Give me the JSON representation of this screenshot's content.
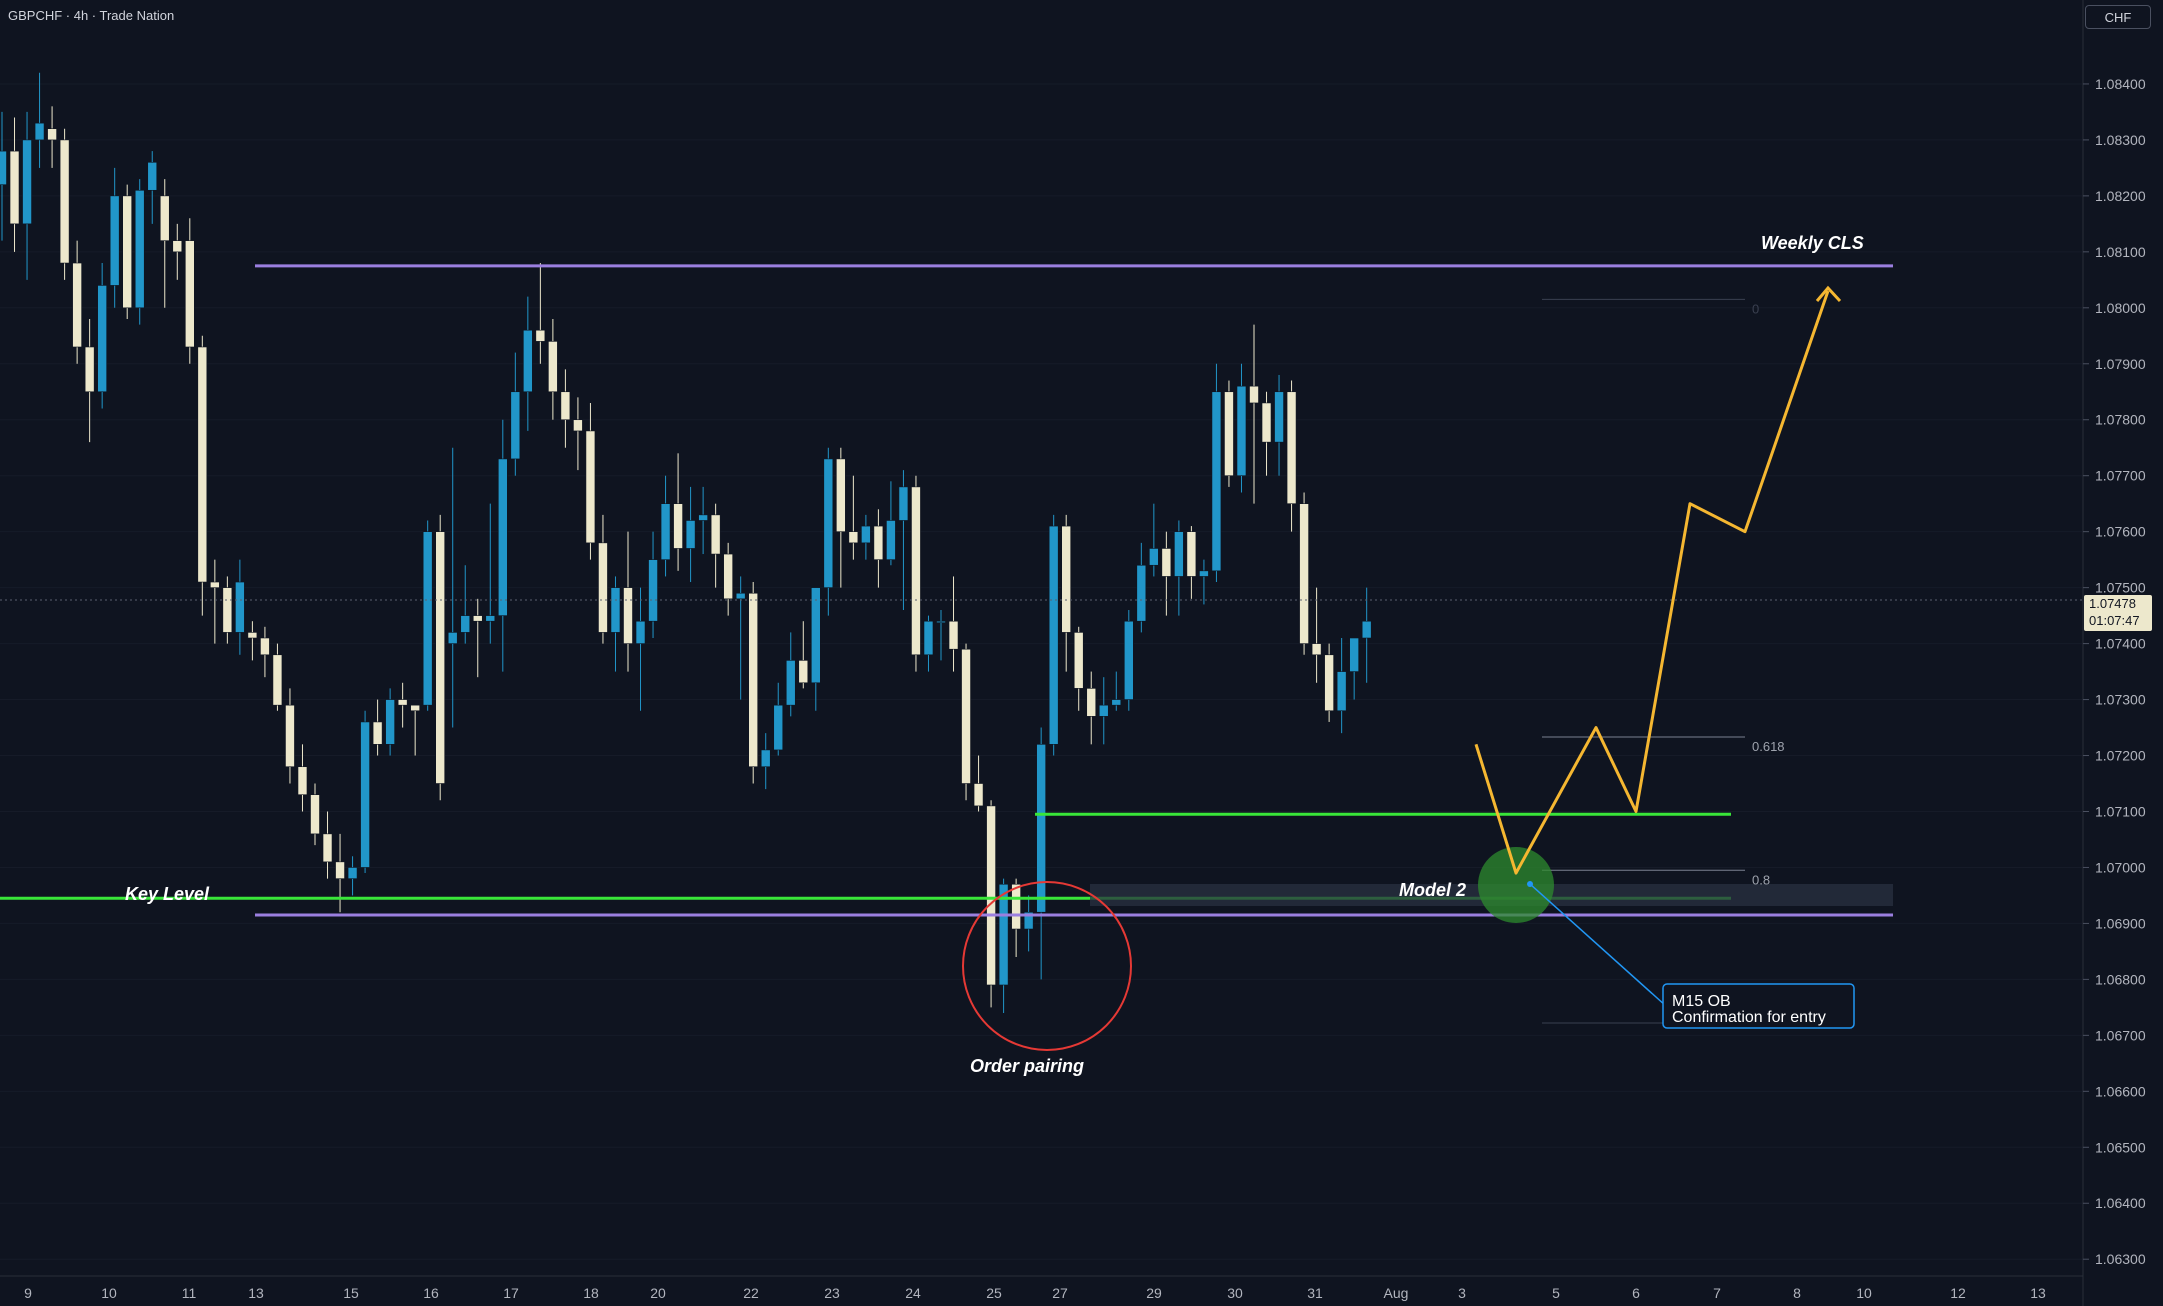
{
  "header": {
    "symbol_info": "GBPCHF · 4h · Trade Nation",
    "currency": "CHF"
  },
  "price_scale": {
    "ticks": [
      "1.08400",
      "1.08300",
      "1.08200",
      "1.08100",
      "1.08000",
      "1.07900",
      "1.07800",
      "1.07700",
      "1.07600",
      "1.07500",
      "1.07400",
      "1.07300",
      "1.07200",
      "1.07100",
      "1.07000",
      "1.06900",
      "1.06800",
      "1.06700",
      "1.06600",
      "1.06500",
      "1.06400",
      "1.06300"
    ],
    "ymin": 1.0627,
    "ymax": 1.0855,
    "current_price": "1.07478",
    "countdown": "01:07:47",
    "current_value": 1.07478
  },
  "time_scale": {
    "labels": [
      "9",
      "10",
      "11",
      "13",
      "15",
      "16",
      "17",
      "18",
      "20",
      "22",
      "23",
      "24",
      "25",
      "27",
      "29",
      "30",
      "31",
      "Aug",
      "3",
      "5",
      "6",
      "7",
      "8",
      "10",
      "12",
      "13"
    ]
  },
  "annotations": {
    "weekly_cls": "Weekly CLS",
    "key_level": "Key Level",
    "model_2": "Model 2",
    "order_pairing": "Order pairing",
    "fib_0": "0",
    "fib_618": "0.618",
    "fib_08": "0.8",
    "callout_line1": "M15 OB",
    "callout_line2": "Confirmation for entry"
  },
  "levels": {
    "weekly_cls_price": 1.08075,
    "lower_range_price": 1.06915,
    "key_level_price": 1.06945,
    "entry_level_price": 1.07095
  },
  "colors": {
    "background": "#0f1420",
    "bull_candle": "#2196c9",
    "bear_candle": "#ede8cc",
    "range_line": "#9b7fe0",
    "key_level": "#39e639",
    "projection": "#f5b731",
    "circle": "#e53935",
    "callout_border": "#2196f3"
  },
  "chart_data": {
    "type": "candlestick",
    "ohlc": [
      [
        1.0822,
        1.0835,
        1.0812,
        1.0828
      ],
      [
        1.0828,
        1.0834,
        1.081,
        1.0815
      ],
      [
        1.0815,
        1.0835,
        1.0805,
        1.083
      ],
      [
        1.083,
        1.0842,
        1.0825,
        1.0833
      ],
      [
        1.0832,
        1.0836,
        1.0825,
        1.083
      ],
      [
        1.083,
        1.0832,
        1.0805,
        1.0808
      ],
      [
        1.0808,
        1.0812,
        1.079,
        1.0793
      ],
      [
        1.0793,
        1.0798,
        1.0776,
        1.0785
      ],
      [
        1.0785,
        1.0808,
        1.0782,
        1.0804
      ],
      [
        1.0804,
        1.0825,
        1.08,
        1.082
      ],
      [
        1.082,
        1.0822,
        1.0798,
        1.08
      ],
      [
        1.08,
        1.0823,
        1.0797,
        1.0821
      ],
      [
        1.0821,
        1.0828,
        1.0815,
        1.0826
      ],
      [
        1.082,
        1.0823,
        1.08,
        1.0812
      ],
      [
        1.0812,
        1.0815,
        1.0805,
        1.081
      ],
      [
        1.0812,
        1.0816,
        1.079,
        1.0793
      ],
      [
        1.0793,
        1.0795,
        1.0745,
        1.0751
      ],
      [
        1.0751,
        1.0755,
        1.074,
        1.075
      ],
      [
        1.075,
        1.0752,
        1.074,
        1.0742
      ],
      [
        1.0742,
        1.0755,
        1.0738,
        1.0751
      ],
      [
        1.0742,
        1.0744,
        1.0737,
        1.0741
      ],
      [
        1.0741,
        1.0743,
        1.0734,
        1.0738
      ],
      [
        1.0738,
        1.074,
        1.0728,
        1.0729
      ],
      [
        1.0729,
        1.0732,
        1.0715,
        1.0718
      ],
      [
        1.0718,
        1.0722,
        1.071,
        1.0713
      ],
      [
        1.0713,
        1.0715,
        1.0704,
        1.0706
      ],
      [
        1.0706,
        1.071,
        1.0698,
        1.0701
      ],
      [
        1.0701,
        1.0706,
        1.0692,
        1.0698
      ],
      [
        1.0698,
        1.0702,
        1.0695,
        1.07
      ],
      [
        1.07,
        1.0728,
        1.0699,
        1.0726
      ],
      [
        1.0726,
        1.073,
        1.072,
        1.0722
      ],
      [
        1.0722,
        1.0732,
        1.072,
        1.073
      ],
      [
        1.073,
        1.0733,
        1.0725,
        1.0729
      ],
      [
        1.0729,
        1.0728,
        1.072,
        1.0728
      ],
      [
        1.0729,
        1.0762,
        1.0728,
        1.076
      ],
      [
        1.076,
        1.0763,
        1.0712,
        1.0715
      ],
      [
        1.074,
        1.0775,
        1.0725,
        1.0742
      ],
      [
        1.0742,
        1.0754,
        1.074,
        1.0745
      ],
      [
        1.0745,
        1.0748,
        1.0734,
        1.0744
      ],
      [
        1.0744,
        1.0765,
        1.074,
        1.0745
      ],
      [
        1.0745,
        1.078,
        1.0735,
        1.0773
      ],
      [
        1.0773,
        1.0792,
        1.077,
        1.0785
      ],
      [
        1.0785,
        1.0802,
        1.0778,
        1.0796
      ],
      [
        1.0796,
        1.0808,
        1.079,
        1.0794
      ],
      [
        1.0794,
        1.0798,
        1.078,
        1.0785
      ],
      [
        1.0785,
        1.0789,
        1.0775,
        1.078
      ],
      [
        1.078,
        1.0784,
        1.0771,
        1.0778
      ],
      [
        1.0778,
        1.0783,
        1.0755,
        1.0758
      ],
      [
        1.0758,
        1.0763,
        1.074,
        1.0742
      ],
      [
        1.0742,
        1.0752,
        1.0735,
        1.075
      ],
      [
        1.075,
        1.076,
        1.0735,
        1.074
      ],
      [
        1.074,
        1.075,
        1.0728,
        1.0744
      ],
      [
        1.0744,
        1.076,
        1.0741,
        1.0755
      ],
      [
        1.0755,
        1.077,
        1.0752,
        1.0765
      ],
      [
        1.0765,
        1.0774,
        1.0753,
        1.0757
      ],
      [
        1.0757,
        1.0768,
        1.0751,
        1.0762
      ],
      [
        1.0762,
        1.0768,
        1.0756,
        1.0763
      ],
      [
        1.0763,
        1.0765,
        1.075,
        1.0756
      ],
      [
        1.0756,
        1.0758,
        1.0745,
        1.0748
      ],
      [
        1.0748,
        1.0752,
        1.073,
        1.0749
      ],
      [
        1.0749,
        1.0751,
        1.0715,
        1.0718
      ],
      [
        1.0718,
        1.0724,
        1.0714,
        1.0721
      ],
      [
        1.0721,
        1.0733,
        1.072,
        1.0729
      ],
      [
        1.0729,
        1.0742,
        1.0727,
        1.0737
      ],
      [
        1.0737,
        1.0744,
        1.0732,
        1.0733
      ],
      [
        1.0733,
        1.075,
        1.0728,
        1.075
      ],
      [
        1.075,
        1.0775,
        1.0745,
        1.0773
      ],
      [
        1.0773,
        1.0775,
        1.075,
        1.076
      ],
      [
        1.076,
        1.077,
        1.0755,
        1.0758
      ],
      [
        1.0758,
        1.0763,
        1.0755,
        1.0761
      ],
      [
        1.0761,
        1.0764,
        1.075,
        1.0755
      ],
      [
        1.0755,
        1.0769,
        1.0754,
        1.0762
      ],
      [
        1.0762,
        1.0771,
        1.0746,
        1.0768
      ],
      [
        1.0768,
        1.077,
        1.0735,
        1.0738
      ],
      [
        1.0738,
        1.0745,
        1.0735,
        1.0744
      ],
      [
        1.0744,
        1.0746,
        1.0737,
        1.0744
      ],
      [
        1.0744,
        1.0752,
        1.0735,
        1.0739
      ],
      [
        1.0739,
        1.074,
        1.0712,
        1.0715
      ],
      [
        1.0715,
        1.072,
        1.071,
        1.0711
      ],
      [
        1.0711,
        1.0712,
        1.0675,
        1.0679
      ],
      [
        1.0679,
        1.0698,
        1.0674,
        1.0697
      ],
      [
        1.0697,
        1.0698,
        1.0684,
        1.0689
      ],
      [
        1.0689,
        1.0695,
        1.0685,
        1.0692
      ],
      [
        1.0692,
        1.0725,
        1.068,
        1.0722
      ],
      [
        1.0722,
        1.0763,
        1.072,
        1.0761
      ],
      [
        1.0761,
        1.0763,
        1.0735,
        1.0742
      ],
      [
        1.0742,
        1.0743,
        1.0728,
        1.0732
      ],
      [
        1.0732,
        1.0735,
        1.0722,
        1.0727
      ],
      [
        1.0727,
        1.0734,
        1.0722,
        1.0729
      ],
      [
        1.0729,
        1.0735,
        1.0728,
        1.073
      ],
      [
        1.073,
        1.0746,
        1.0728,
        1.0744
      ],
      [
        1.0744,
        1.0758,
        1.0742,
        1.0754
      ],
      [
        1.0754,
        1.0765,
        1.0752,
        1.0757
      ],
      [
        1.0757,
        1.076,
        1.0745,
        1.0752
      ],
      [
        1.0752,
        1.0762,
        1.0745,
        1.076
      ],
      [
        1.076,
        1.0761,
        1.0748,
        1.0752
      ],
      [
        1.0752,
        1.0755,
        1.0747,
        1.0753
      ],
      [
        1.0753,
        1.079,
        1.0751,
        1.0785
      ],
      [
        1.0785,
        1.0787,
        1.0768,
        1.077
      ],
      [
        1.077,
        1.079,
        1.0767,
        1.0786
      ],
      [
        1.0786,
        1.0797,
        1.0765,
        1.0783
      ],
      [
        1.0783,
        1.0785,
        1.077,
        1.0776
      ],
      [
        1.0776,
        1.0788,
        1.077,
        1.0785
      ],
      [
        1.0785,
        1.0787,
        1.076,
        1.0765
      ],
      [
        1.0765,
        1.0767,
        1.0738,
        1.074
      ],
      [
        1.074,
        1.075,
        1.0733,
        1.0738
      ],
      [
        1.0738,
        1.074,
        1.0726,
        1.0728
      ],
      [
        1.0728,
        1.0741,
        1.0724,
        1.0735
      ],
      [
        1.0735,
        1.0741,
        1.073,
        1.0741
      ],
      [
        1.0741,
        1.075,
        1.0733,
        1.0744
      ]
    ],
    "projection_path": [
      [
        "2025-08-03",
        1.0722
      ],
      [
        "2025-08-04",
        1.0699
      ],
      [
        "2025-08-05",
        1.0725
      ],
      [
        "2025-08-06",
        1.071
      ],
      [
        "2025-08-07",
        1.0765
      ],
      [
        "2025-08-08",
        1.076
      ],
      [
        "2025-08-10",
        1.0803
      ]
    ],
    "fib_levels": [
      {
        "label": "0",
        "price": 1.08015
      },
      {
        "label": "0.618",
        "price": 1.07233
      },
      {
        "label": "0.8",
        "price": 1.06995
      }
    ]
  }
}
